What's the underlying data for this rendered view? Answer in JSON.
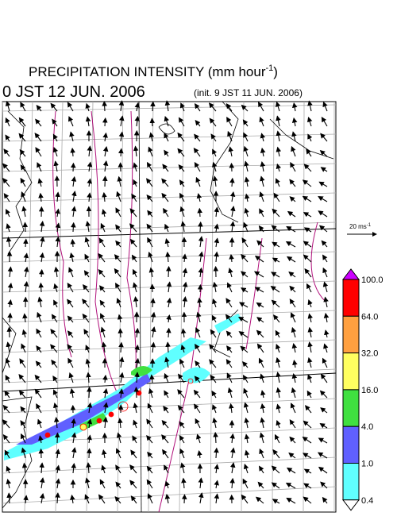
{
  "header": {
    "title": {
      "text": "PRECIPITATION INTENSITY (mm hour",
      "superscript": "-1",
      "close": ")"
    },
    "time": "0 JST 12 JUN. 2006",
    "init": "(init. 9 JST 11 JUN. 2006)"
  },
  "reference_vector": {
    "text": "20 ms",
    "superscript": "-1"
  },
  "colorbar": {
    "levels": [
      {
        "value": 100,
        "label": "100.0"
      },
      {
        "value": 64,
        "label": "64.0"
      },
      {
        "value": 32,
        "label": "32.0"
      },
      {
        "value": 16,
        "label": "16.0"
      },
      {
        "value": 4,
        "label": "4.0"
      },
      {
        "value": 1,
        "label": "1.0"
      },
      {
        "value": 0.4,
        "label": "0.4"
      }
    ],
    "colors": [
      "#cc00ff",
      "#ff0000",
      "#ffa040",
      "#ffff60",
      "#40e040",
      "#6060ff",
      "#60ffff",
      "#ffffff"
    ]
  }
}
